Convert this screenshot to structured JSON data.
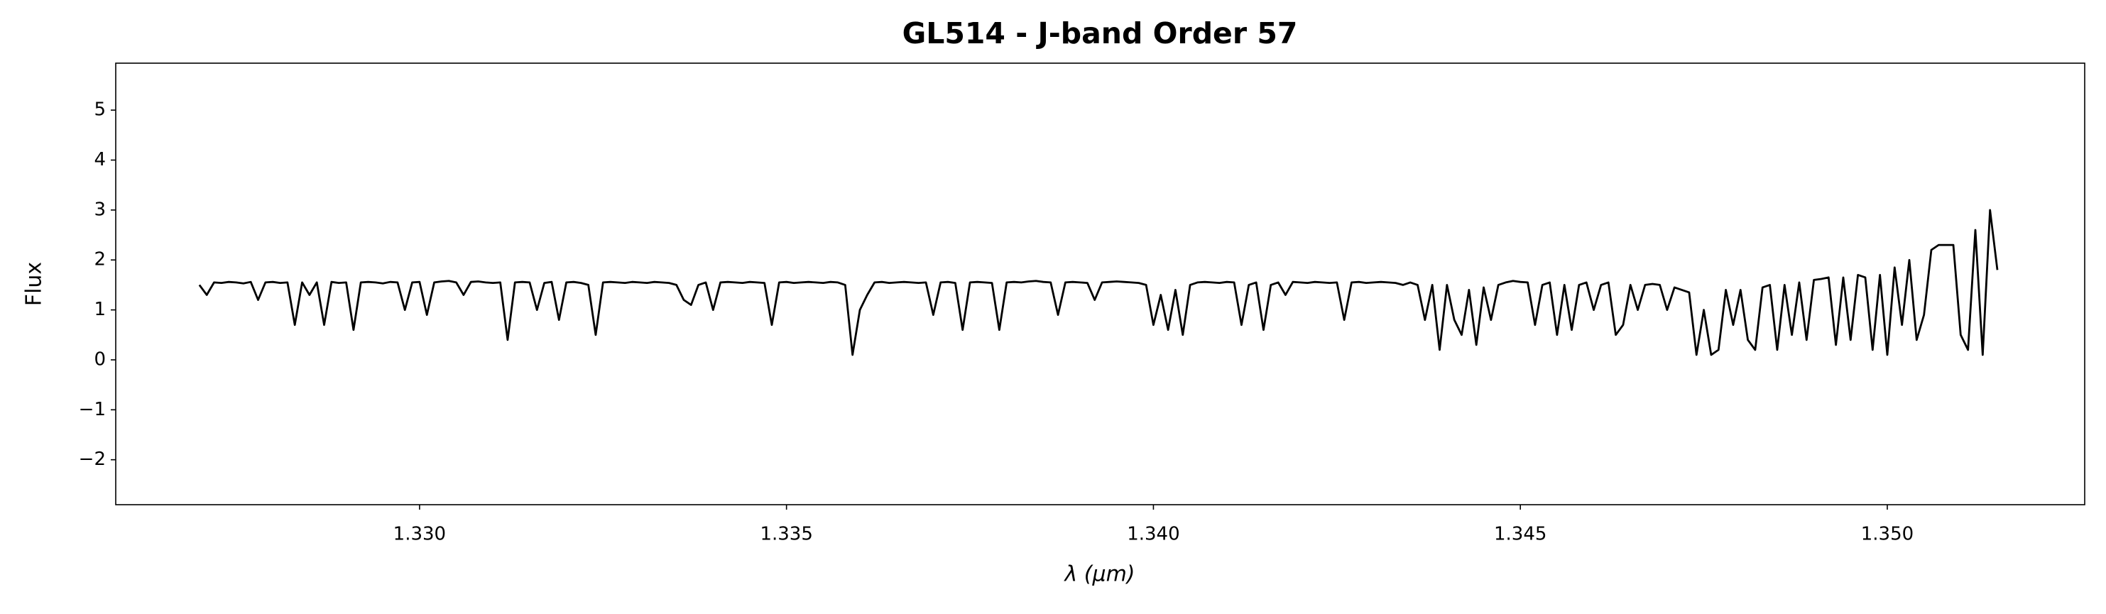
{
  "chart_data": {
    "type": "line",
    "title": "GL514 - J-band Order 57",
    "xlabel": "λ (μm)",
    "ylabel": "Flux",
    "color": "#000000",
    "x": [
      1.327,
      1.3271,
      1.3272,
      1.3273,
      1.3274,
      1.3275,
      1.3276,
      1.3277,
      1.3278,
      1.3279,
      1.328,
      1.3281,
      1.3282,
      1.3283,
      1.3284,
      1.3285,
      1.3286,
      1.3287,
      1.3288,
      1.3289,
      1.329,
      1.3291,
      1.3292,
      1.3293,
      1.3294,
      1.3295,
      1.3296,
      1.3297,
      1.3298,
      1.3299,
      1.33,
      1.3301,
      1.3302,
      1.3303,
      1.3304,
      1.3305,
      1.3306,
      1.3307,
      1.3308,
      1.3309,
      1.331,
      1.3311,
      1.3312,
      1.3313,
      1.3314,
      1.3315,
      1.3316,
      1.3317,
      1.3318,
      1.3319,
      1.332,
      1.3321,
      1.3322,
      1.3323,
      1.3324,
      1.3325,
      1.3326,
      1.3327,
      1.3328,
      1.3329,
      1.333,
      1.3331,
      1.3332,
      1.3333,
      1.3334,
      1.3335,
      1.3336,
      1.3337,
      1.3338,
      1.3339,
      1.334,
      1.3341,
      1.3342,
      1.3343,
      1.3344,
      1.3345,
      1.3346,
      1.3347,
      1.3348,
      1.3349,
      1.335,
      1.3351,
      1.3352,
      1.3353,
      1.3354,
      1.3355,
      1.3356,
      1.3357,
      1.3358,
      1.3359,
      1.336,
      1.3361,
      1.3362,
      1.3363,
      1.3364,
      1.3365,
      1.3366,
      1.3367,
      1.3368,
      1.3369,
      1.337,
      1.3371,
      1.3372,
      1.3373,
      1.3374,
      1.3375,
      1.3376,
      1.3377,
      1.3378,
      1.3379,
      1.338,
      1.3381,
      1.3382,
      1.3383,
      1.3384,
      1.3385,
      1.3386,
      1.3387,
      1.3388,
      1.3389,
      1.339,
      1.3391,
      1.3392,
      1.3393,
      1.3394,
      1.3395,
      1.3396,
      1.3397,
      1.3398,
      1.3399,
      1.34,
      1.3401,
      1.3402,
      1.3403,
      1.3404,
      1.3405,
      1.3406,
      1.3407,
      1.3408,
      1.3409,
      1.341,
      1.3411,
      1.3412,
      1.3413,
      1.3414,
      1.3415,
      1.3416,
      1.3417,
      1.3418,
      1.3419,
      1.342,
      1.3421,
      1.3422,
      1.3423,
      1.3424,
      1.3425,
      1.3426,
      1.3427,
      1.3428,
      1.3429,
      1.343,
      1.3431,
      1.3432,
      1.3433,
      1.3434,
      1.3435,
      1.3436,
      1.3437,
      1.3438,
      1.3439,
      1.344,
      1.3441,
      1.3442,
      1.3443,
      1.3444,
      1.3445,
      1.3446,
      1.3447,
      1.3448,
      1.3449,
      1.345,
      1.3451,
      1.3452,
      1.3453,
      1.3454,
      1.3455,
      1.3456,
      1.3457,
      1.3458,
      1.3459,
      1.346,
      1.3461,
      1.3462,
      1.3463,
      1.3464,
      1.3465,
      1.3466,
      1.3467,
      1.3468,
      1.3469,
      1.347,
      1.3471,
      1.3472,
      1.3473,
      1.3474,
      1.3475,
      1.3476,
      1.3477,
      1.3478,
      1.3479,
      1.348,
      1.3481,
      1.3482,
      1.3483,
      1.3484,
      1.3485,
      1.3486,
      1.3487,
      1.3488,
      1.3489,
      1.349,
      1.3491,
      1.3492,
      1.3493,
      1.3494,
      1.3495,
      1.3496,
      1.3497,
      1.3498,
      1.3499,
      1.35,
      1.3501,
      1.3502,
      1.3503,
      1.3504,
      1.3505,
      1.3506,
      1.3507,
      1.3508,
      1.3509,
      1.351,
      1.3511,
      1.3512,
      1.3513,
      1.3514,
      1.3515
    ],
    "values": [
      1.5,
      1.3,
      1.55,
      1.54,
      1.56,
      1.55,
      1.53,
      1.56,
      1.2,
      1.55,
      1.56,
      1.54,
      1.55,
      0.7,
      1.55,
      1.3,
      1.55,
      0.7,
      1.56,
      1.54,
      1.55,
      0.6,
      1.55,
      1.56,
      1.55,
      1.53,
      1.56,
      1.55,
      1.0,
      1.55,
      1.56,
      0.9,
      1.55,
      1.57,
      1.58,
      1.55,
      1.3,
      1.56,
      1.57,
      1.55,
      1.54,
      1.55,
      0.4,
      1.55,
      1.56,
      1.55,
      1.0,
      1.54,
      1.56,
      0.8,
      1.55,
      1.56,
      1.54,
      1.5,
      0.5,
      1.55,
      1.56,
      1.55,
      1.54,
      1.56,
      1.55,
      1.54,
      1.56,
      1.55,
      1.54,
      1.5,
      1.2,
      1.1,
      1.5,
      1.55,
      1.0,
      1.55,
      1.56,
      1.55,
      1.54,
      1.56,
      1.55,
      1.54,
      0.7,
      1.55,
      1.56,
      1.54,
      1.55,
      1.56,
      1.55,
      1.54,
      1.56,
      1.55,
      1.5,
      0.1,
      1.0,
      1.3,
      1.55,
      1.56,
      1.54,
      1.55,
      1.56,
      1.55,
      1.54,
      1.55,
      0.9,
      1.55,
      1.56,
      1.54,
      0.6,
      1.55,
      1.56,
      1.55,
      1.54,
      0.6,
      1.55,
      1.56,
      1.55,
      1.57,
      1.58,
      1.56,
      1.55,
      0.9,
      1.55,
      1.56,
      1.55,
      1.54,
      1.2,
      1.55,
      1.56,
      1.57,
      1.56,
      1.55,
      1.54,
      1.5,
      0.7,
      1.3,
      0.6,
      1.4,
      0.5,
      1.5,
      1.55,
      1.56,
      1.55,
      1.54,
      1.56,
      1.55,
      0.7,
      1.5,
      1.55,
      0.6,
      1.5,
      1.55,
      1.3,
      1.56,
      1.55,
      1.54,
      1.56,
      1.55,
      1.54,
      1.55,
      0.8,
      1.55,
      1.56,
      1.54,
      1.55,
      1.56,
      1.55,
      1.54,
      1.5,
      1.55,
      1.5,
      0.8,
      1.5,
      0.2,
      1.5,
      0.8,
      0.5,
      1.4,
      0.3,
      1.45,
      0.8,
      1.5,
      1.55,
      1.58,
      1.56,
      1.55,
      0.7,
      1.5,
      1.55,
      0.5,
      1.5,
      0.6,
      1.5,
      1.55,
      1.0,
      1.5,
      1.55,
      0.5,
      0.7,
      1.5,
      1.0,
      1.5,
      1.52,
      1.5,
      1.0,
      1.45,
      1.4,
      1.35,
      0.1,
      1.0,
      0.1,
      0.2,
      1.4,
      0.7,
      1.4,
      0.4,
      0.2,
      1.45,
      1.5,
      0.2,
      1.5,
      0.5,
      1.55,
      0.4,
      1.6,
      1.62,
      1.65,
      0.3,
      1.65,
      0.4,
      1.7,
      1.65,
      0.2,
      1.7,
      0.1,
      1.85,
      0.7,
      2.0,
      0.4,
      0.9,
      2.2,
      2.3,
      2.3,
      2.3,
      0.5,
      0.2,
      2.6,
      0.1,
      3.0,
      1.8
    ],
    "xlim": [
      1.32586,
      1.35269
    ],
    "ylim": [
      -2.9,
      5.94
    ],
    "xticks": [
      {
        "value": 1.33,
        "label": "1.330"
      },
      {
        "value": 1.335,
        "label": "1.335"
      },
      {
        "value": 1.34,
        "label": "1.340"
      },
      {
        "value": 1.345,
        "label": "1.345"
      },
      {
        "value": 1.35,
        "label": "1.350"
      }
    ],
    "yticks": [
      {
        "value": -2,
        "label": "−2"
      },
      {
        "value": -1,
        "label": "−1"
      },
      0,
      1,
      2,
      3,
      4,
      5
    ]
  }
}
